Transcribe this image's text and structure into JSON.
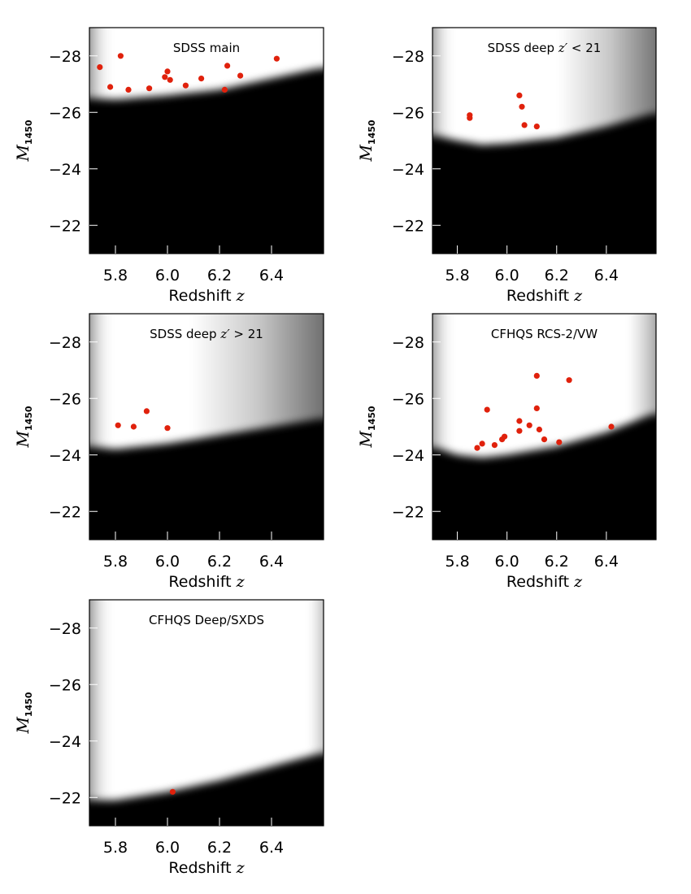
{
  "figure": {
    "colors": {
      "background": "#ffffff",
      "completeness_high": "#ffffff",
      "completeness_low": "#000000",
      "points": "#e0210c",
      "frame": "#000000"
    }
  },
  "chart_data": [
    {
      "type": "scatter",
      "title": "SDSS main",
      "title_text": {
        "pre": "SDSS main",
        "var": "",
        "post": ""
      },
      "xlabel": "Redshift z",
      "ylabel": "M1450",
      "xlim": [
        5.7,
        6.6
      ],
      "ylim": [
        -21,
        -29
      ],
      "xticks": [
        5.8,
        6.0,
        6.2,
        6.4
      ],
      "xtick_labels": [
        "5.8",
        "6.0",
        "6.2",
        "6.4"
      ],
      "yticks": [
        -28,
        -26,
        -24,
        -22
      ],
      "ytick_labels": [
        "−28",
        "−26",
        "−24",
        "−22"
      ],
      "background_shading": {
        "description": "selection completeness",
        "boundary": [
          [
            5.7,
            -26.5
          ],
          [
            5.8,
            -26.45
          ],
          [
            6.0,
            -26.6
          ],
          [
            6.2,
            -26.8
          ],
          [
            6.4,
            -27.2
          ],
          [
            6.6,
            -27.6
          ]
        ],
        "right_fade_start": 6.55
      },
      "points": [
        {
          "x": 5.74,
          "y": -27.6
        },
        {
          "x": 5.78,
          "y": -26.9
        },
        {
          "x": 5.82,
          "y": -28.0
        },
        {
          "x": 5.85,
          "y": -26.8
        },
        {
          "x": 5.93,
          "y": -26.85
        },
        {
          "x": 5.99,
          "y": -27.25
        },
        {
          "x": 6.0,
          "y": -27.45
        },
        {
          "x": 6.01,
          "y": -27.15
        },
        {
          "x": 6.07,
          "y": -26.95
        },
        {
          "x": 6.13,
          "y": -27.2
        },
        {
          "x": 6.22,
          "y": -26.8
        },
        {
          "x": 6.23,
          "y": -27.65
        },
        {
          "x": 6.28,
          "y": -27.3
        },
        {
          "x": 6.42,
          "y": -27.9
        }
      ]
    },
    {
      "type": "scatter",
      "title": "SDSS deep z′ < 21",
      "title_text": {
        "pre": "SDSS deep ",
        "var": "z′",
        "post": " < 21"
      },
      "xlabel": "Redshift z",
      "ylabel": "M1450",
      "xlim": [
        5.7,
        6.6
      ],
      "ylim": [
        -21,
        -29
      ],
      "xticks": [
        5.8,
        6.0,
        6.2,
        6.4
      ],
      "xtick_labels": [
        "5.8",
        "6.0",
        "6.2",
        "6.4"
      ],
      "yticks": [
        -28,
        -26,
        -24,
        -22
      ],
      "ytick_labels": [
        "−28",
        "−26",
        "−24",
        "−22"
      ],
      "background_shading": {
        "description": "selection completeness",
        "boundary": [
          [
            5.7,
            -25.2
          ],
          [
            5.8,
            -25.0
          ],
          [
            5.9,
            -24.85
          ],
          [
            6.0,
            -24.9
          ],
          [
            6.2,
            -25.1
          ],
          [
            6.4,
            -25.5
          ],
          [
            6.6,
            -26.0
          ]
        ],
        "right_fade_start": 6.2
      },
      "points": [
        {
          "x": 5.85,
          "y": -25.8
        },
        {
          "x": 5.85,
          "y": -25.9
        },
        {
          "x": 6.05,
          "y": -26.6
        },
        {
          "x": 6.06,
          "y": -26.2
        },
        {
          "x": 6.07,
          "y": -25.55
        },
        {
          "x": 6.12,
          "y": -25.5
        }
      ]
    },
    {
      "type": "scatter",
      "title": "SDSS deep z′ > 21",
      "title_text": {
        "pre": "SDSS deep ",
        "var": "z′",
        "post": " > 21"
      },
      "xlabel": "Redshift z",
      "ylabel": "M1450",
      "xlim": [
        5.7,
        6.6
      ],
      "ylim": [
        -21,
        -29
      ],
      "xticks": [
        5.8,
        6.0,
        6.2,
        6.4
      ],
      "xtick_labels": [
        "5.8",
        "6.0",
        "6.2",
        "6.4"
      ],
      "yticks": [
        -28,
        -26,
        -24,
        -22
      ],
      "ytick_labels": [
        "−28",
        "−26",
        "−24",
        "−22"
      ],
      "background_shading": {
        "description": "selection completeness",
        "boundary": [
          [
            5.7,
            -24.3
          ],
          [
            5.8,
            -24.2
          ],
          [
            5.9,
            -24.3
          ],
          [
            6.0,
            -24.4
          ],
          [
            6.2,
            -24.7
          ],
          [
            6.4,
            -25.0
          ],
          [
            6.6,
            -25.3
          ]
        ],
        "right_fade_start": 6.1
      },
      "points": [
        {
          "x": 5.81,
          "y": -25.05
        },
        {
          "x": 5.87,
          "y": -25.0
        },
        {
          "x": 5.92,
          "y": -25.55
        },
        {
          "x": 6.0,
          "y": -24.95
        }
      ]
    },
    {
      "type": "scatter",
      "title": "CFHQS RCS-2/VW",
      "title_text": {
        "pre": "CFHQS RCS-2/VW",
        "var": "",
        "post": ""
      },
      "xlabel": "Redshift z",
      "ylabel": "M1450",
      "xlim": [
        5.7,
        6.6
      ],
      "ylim": [
        -21,
        -29
      ],
      "xticks": [
        5.8,
        6.0,
        6.2,
        6.4
      ],
      "xtick_labels": [
        "5.8",
        "6.0",
        "6.2",
        "6.4"
      ],
      "yticks": [
        -28,
        -26,
        -24,
        -22
      ],
      "ytick_labels": [
        "−28",
        "−26",
        "−24",
        "−22"
      ],
      "background_shading": {
        "description": "selection completeness",
        "boundary": [
          [
            5.7,
            -24.3
          ],
          [
            5.8,
            -24.0
          ],
          [
            5.9,
            -23.9
          ],
          [
            6.0,
            -24.0
          ],
          [
            6.2,
            -24.3
          ],
          [
            6.4,
            -24.8
          ],
          [
            6.6,
            -25.5
          ]
        ],
        "right_fade_start": 6.45
      },
      "points": [
        {
          "x": 5.88,
          "y": -24.25
        },
        {
          "x": 5.9,
          "y": -24.4
        },
        {
          "x": 5.92,
          "y": -25.6
        },
        {
          "x": 5.95,
          "y": -24.35
        },
        {
          "x": 5.98,
          "y": -24.55
        },
        {
          "x": 5.99,
          "y": -24.65
        },
        {
          "x": 6.05,
          "y": -24.85
        },
        {
          "x": 6.05,
          "y": -25.2
        },
        {
          "x": 6.09,
          "y": -25.05
        },
        {
          "x": 6.12,
          "y": -26.8
        },
        {
          "x": 6.12,
          "y": -25.65
        },
        {
          "x": 6.13,
          "y": -24.9
        },
        {
          "x": 6.15,
          "y": -24.55
        },
        {
          "x": 6.21,
          "y": -24.45
        },
        {
          "x": 6.25,
          "y": -26.65
        },
        {
          "x": 6.42,
          "y": -25.0
        }
      ]
    },
    {
      "type": "scatter",
      "title": "CFHQS Deep/SXDS",
      "title_text": {
        "pre": "CFHQS Deep/SXDS",
        "var": "",
        "post": ""
      },
      "xlabel": "Redshift z",
      "ylabel": "M1450",
      "xlim": [
        5.7,
        6.6
      ],
      "ylim": [
        -21,
        -29
      ],
      "xticks": [
        5.8,
        6.0,
        6.2,
        6.4
      ],
      "xtick_labels": [
        "5.8",
        "6.0",
        "6.2",
        "6.4"
      ],
      "yticks": [
        -28,
        -26,
        -24,
        -22
      ],
      "ytick_labels": [
        "−28",
        "−26",
        "−24",
        "−22"
      ],
      "background_shading": {
        "description": "selection completeness",
        "boundary": [
          [
            5.7,
            -21.9
          ],
          [
            5.8,
            -21.9
          ],
          [
            6.0,
            -22.2
          ],
          [
            6.2,
            -22.6
          ],
          [
            6.4,
            -23.1
          ],
          [
            6.6,
            -23.6
          ]
        ],
        "right_fade_start": 6.5
      },
      "points": [
        {
          "x": 6.02,
          "y": -22.2
        }
      ]
    }
  ]
}
